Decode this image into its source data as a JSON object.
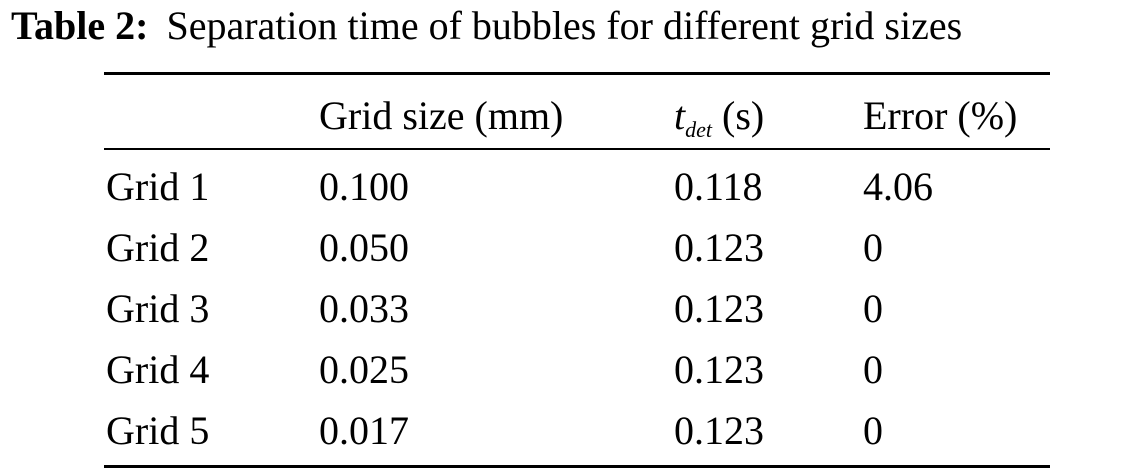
{
  "caption": {
    "label": "Table 2:",
    "text": "Separation time of bubbles for different grid sizes"
  },
  "table": {
    "headers": {
      "col0": "",
      "grid_size": "Grid size (mm)",
      "t_symbol": "t",
      "t_subscript": "det",
      "t_unit": " (s)",
      "error": "Error (%)"
    },
    "rows": [
      {
        "name": "Grid 1",
        "grid_size": "0.100",
        "t_det": "0.118",
        "error": "4.06"
      },
      {
        "name": "Grid 2",
        "grid_size": "0.050",
        "t_det": "0.123",
        "error": "0"
      },
      {
        "name": "Grid 3",
        "grid_size": "0.033",
        "t_det": "0.123",
        "error": "0"
      },
      {
        "name": "Grid 4",
        "grid_size": "0.025",
        "t_det": "0.123",
        "error": "0"
      },
      {
        "name": "Grid 5",
        "grid_size": "0.017",
        "t_det": "0.123",
        "error": "0"
      }
    ]
  }
}
